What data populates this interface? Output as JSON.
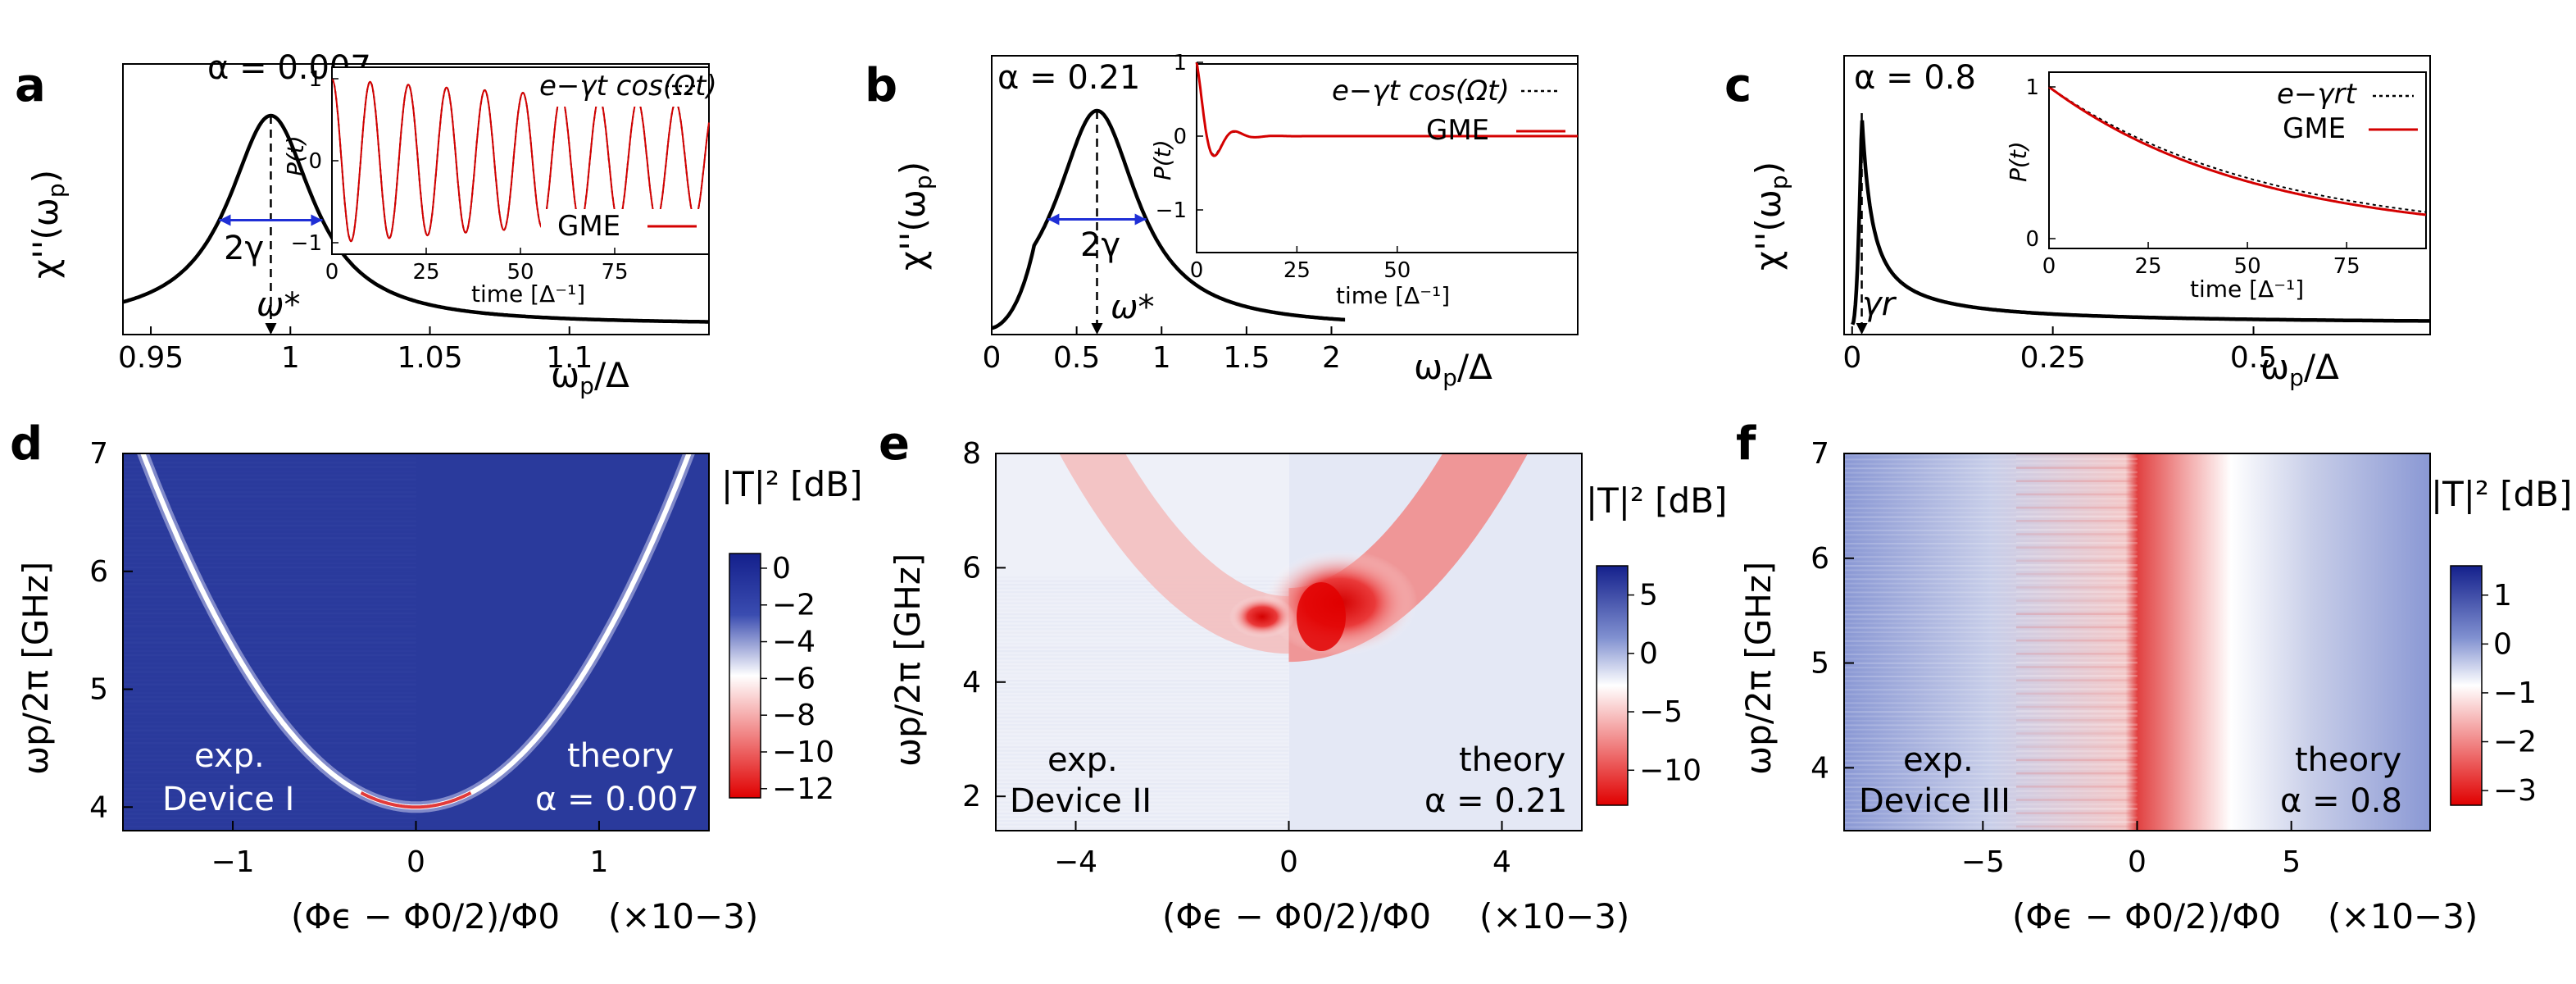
{
  "panels": {
    "a": {
      "label": "a",
      "alpha_text": "α = 0.007",
      "ylabel": "χ''(ω",
      "ylabel_sub": "p",
      "ylabel_end": ")",
      "xlabel_main": "ω",
      "xlabel_sub": "p",
      "xlabel_end": "/Δ",
      "width_label": "2γ",
      "peak_label": "ω*",
      "xlim": [
        0.94,
        1.15
      ],
      "x_ticks": [
        "0.95",
        "1",
        "1.05",
        "1.1"
      ],
      "x_tick_values": [
        0.95,
        1.0,
        1.05,
        1.1
      ],
      "inset": {
        "ylabel": "P(t)",
        "xlabel": "time [Δ⁻¹]",
        "y_ticks": [
          "1",
          "0",
          "−1"
        ],
        "x_ticks": [
          "0",
          "25",
          "50",
          "75"
        ],
        "legend_dotted": "e−γt cos(Ωt)",
        "legend_solid": "GME",
        "omega": 0.62,
        "gamma": 0.0037,
        "tmax": 100
      }
    },
    "b": {
      "label": "b",
      "alpha_text": "α = 0.21",
      "ylabel": "χ''(ω",
      "ylabel_sub": "p",
      "ylabel_end": ")",
      "xlabel_main": "ω",
      "xlabel_sub": "p",
      "xlabel_end": "/Δ",
      "width_label": "2γ",
      "peak_label": "ω*",
      "xlim": [
        0,
        3.45
      ],
      "x_ticks": [
        "0",
        "0.5",
        "1",
        "1.5",
        "2"
      ],
      "x_tick_values": [
        0,
        0.5,
        1.0,
        1.5,
        2.0
      ],
      "inset": {
        "ylabel": "P(t)",
        "xlabel": "time [Δ⁻¹]",
        "y_ticks": [
          "1",
          "0",
          "−1"
        ],
        "x_ticks": [
          "0",
          "25",
          "50"
        ],
        "legend_dotted": "e−γt cos(Ωt)",
        "legend_solid": "GME",
        "omega": 0.62,
        "gamma": 0.28,
        "tmax": 95
      }
    },
    "c": {
      "label": "c",
      "alpha_text": "α = 0.8",
      "ylabel": "χ''(ω",
      "ylabel_sub": "p",
      "ylabel_end": ")",
      "xlabel_main": "ω",
      "xlabel_sub": "p",
      "xlabel_end": "/Δ",
      "width_label": "γr",
      "xlim": [
        -0.01,
        0.72
      ],
      "x_ticks": [
        "0",
        "0.25",
        "0.5"
      ],
      "x_tick_values": [
        0,
        0.25,
        0.5
      ],
      "inset": {
        "ylabel": "P(t)",
        "xlabel": "time [Δ⁻¹]",
        "y_ticks": [
          "1",
          "0"
        ],
        "x_ticks": [
          "0",
          "25",
          "50",
          "75"
        ],
        "legend_dotted": "e−γrt",
        "legend_solid": "GME",
        "gamma": 0.0195,
        "tmax": 95
      }
    },
    "d": {
      "label": "d",
      "ylabel": "ωp/2π [GHz]",
      "xlabel": "(Φϵ − Φ0/2)/Φ0",
      "x_scale": "(×10−3)",
      "x_ticks": [
        "−1",
        "0",
        "1"
      ],
      "y_ticks": [
        "4",
        "5",
        "6",
        "7"
      ],
      "left_text": [
        "exp.",
        "Device I"
      ],
      "right_text": [
        "theory",
        "α = 0.007"
      ],
      "cbar_title": "|T|² [dB]",
      "cbar_ticks": [
        "0",
        "−2",
        "−4",
        "−6",
        "−8",
        "−10",
        "−12"
      ]
    },
    "e": {
      "label": "e",
      "ylabel": "ωp/2π [GHz]",
      "xlabel": "(Φϵ − Φ0/2)/Φ0",
      "x_scale": "(×10−3)",
      "x_ticks": [
        "−4",
        "0",
        "4"
      ],
      "y_ticks": [
        "2",
        "4",
        "6",
        "8"
      ],
      "left_text": [
        "exp.",
        "Device II"
      ],
      "right_text": [
        "theory",
        "α = 0.21"
      ],
      "cbar_title": "|T|² [dB]",
      "cbar_ticks": [
        "5",
        "0",
        "−5",
        "−10"
      ]
    },
    "f": {
      "label": "f",
      "ylabel": "ωp/2π [GHz]",
      "xlabel": "(Φϵ − Φ0/2)/Φ0",
      "x_scale": "(×10−3)",
      "x_ticks": [
        "−5",
        "0",
        "5"
      ],
      "y_ticks": [
        "4",
        "5",
        "6",
        "7"
      ],
      "left_text": [
        "exp.",
        "Device III"
      ],
      "right_text": [
        "theory",
        "α = 0.8"
      ],
      "cbar_title": "|T|² [dB]",
      "cbar_ticks": [
        "1",
        "0",
        "−1",
        "−2",
        "−3"
      ]
    }
  },
  "colors": {
    "curve": "#000000",
    "gme": "#d40000",
    "arrow": "#1f2fd6",
    "cmap_high": "#14208c",
    "cmap_mid": "#ffffff",
    "cmap_low": "#e00000"
  },
  "chart_data": [
    {
      "type": "line",
      "panel": "a",
      "x_range": [
        0.94,
        1.15
      ],
      "series": [
        {
          "note": "Lorentzian-like susceptibility",
          "peak_x": 0.993,
          "half_width": 0.018
        }
      ],
      "inset": {
        "type": "line",
        "series": [
          {
            "name": "GME",
            "kind": "damped cosine"
          }
        ]
      }
    },
    {
      "type": "line",
      "panel": "b",
      "x_range": [
        0,
        3.45
      ],
      "series": [
        {
          "peak_x": 0.62,
          "half_width": 0.28
        }
      ],
      "inset": {
        "type": "line",
        "series": [
          {
            "name": "GME",
            "kind": "damped cosine"
          }
        ]
      }
    },
    {
      "type": "line",
      "panel": "c",
      "x_range": [
        -0.01,
        0.72
      ],
      "series": [
        {
          "peak_x": 0.012
        }
      ],
      "inset": {
        "type": "line",
        "series": [
          {
            "name": "GME",
            "kind": "exponential decay"
          }
        ]
      }
    },
    {
      "type": "heatmap",
      "panel": "d",
      "x_range": [
        -1.6,
        1.6
      ],
      "y_range": [
        3.8,
        7
      ],
      "z_range": [
        -12,
        0.8
      ]
    },
    {
      "type": "heatmap",
      "panel": "e",
      "x_range": [
        -5.5,
        5.5
      ],
      "y_range": [
        1.4,
        8
      ],
      "z_range": [
        -12,
        7
      ]
    },
    {
      "type": "heatmap",
      "panel": "f",
      "x_range": [
        -9.5,
        9.5
      ],
      "y_range": [
        3.4,
        7
      ],
      "z_range": [
        -3.3,
        1.6
      ]
    }
  ]
}
